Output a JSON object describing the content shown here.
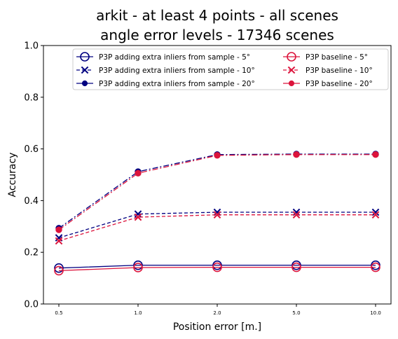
{
  "chart_data": {
    "type": "line",
    "title_lines": [
      "arkit - at least 4 points - all scenes",
      "angle error levels - 17346 scenes"
    ],
    "xlabel": "Position error [m.]",
    "ylabel": "Accuracy",
    "x_tick_labels": [
      "0.5",
      "1.0",
      "2.0",
      "5.0",
      "10.0"
    ],
    "ylim": [
      0.0,
      1.0
    ],
    "y_ticks": [
      0.0,
      0.2,
      0.4,
      0.6,
      0.8,
      1.0
    ],
    "y_tick_labels": [
      "0.0",
      "0.2",
      "0.4",
      "0.6",
      "0.8",
      "1.0"
    ],
    "grid": false,
    "legend_position": "top-right",
    "legend_columns": 2,
    "series": [
      {
        "name": "P3P adding extra inliers from sample - 5°",
        "color": "#000080",
        "linestyle": "solid",
        "marker": "circle-open",
        "values": [
          0.139,
          0.15,
          0.15,
          0.15,
          0.15
        ]
      },
      {
        "name": "P3P adding extra inliers from sample - 10°",
        "color": "#000080",
        "linestyle": "dashed",
        "marker": "x",
        "values": [
          0.256,
          0.348,
          0.355,
          0.355,
          0.355
        ]
      },
      {
        "name": "P3P adding extra inliers from sample - 20°",
        "color": "#000080",
        "linestyle": "dashdot",
        "marker": "dot",
        "values": [
          0.293,
          0.512,
          0.578,
          0.58,
          0.58
        ]
      },
      {
        "name": "P3P baseline - 5°",
        "color": "#dc143c",
        "linestyle": "solid",
        "marker": "circle-open",
        "values": [
          0.129,
          0.141,
          0.142,
          0.142,
          0.142
        ]
      },
      {
        "name": "P3P baseline - 10°",
        "color": "#dc143c",
        "linestyle": "dashed",
        "marker": "x",
        "values": [
          0.244,
          0.336,
          0.345,
          0.345,
          0.345
        ]
      },
      {
        "name": "P3P baseline - 20°",
        "color": "#dc143c",
        "linestyle": "dashdot",
        "marker": "dot",
        "values": [
          0.287,
          0.506,
          0.575,
          0.578,
          0.578
        ]
      }
    ]
  }
}
